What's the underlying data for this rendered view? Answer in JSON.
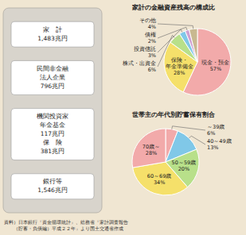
{
  "chart_data": [
    {
      "type": "pie",
      "title": "家計の金融資産残高の構成比",
      "categories": [
        "現金・預金",
        "保険・\n年金準備金",
        "株式・出資金",
        "投資信託",
        "債権",
        "その他"
      ],
      "values": [
        57,
        28,
        6,
        3,
        2,
        4
      ],
      "value_labels": [
        "57%",
        "28%",
        "6%",
        "3%",
        "2%",
        "4%"
      ],
      "data_labels": true,
      "colors": [
        "#f2aaaa",
        "#f5e06a",
        "#b8e08a",
        "#80c8e8",
        "#d0a0d0",
        "#c8b890"
      ],
      "annotations": [
        "家　計\n1,483兆円",
        "民間非金融\n法人企業\n796兆円",
        "機関投資家\n年金基金\n117兆円\n保　険\n381兆円",
        "銀行等\n1,546兆円"
      ]
    },
    {
      "type": "pie",
      "title": "世帯主の年代別貯蓄保有割合",
      "categories": [
        "～39歳",
        "40～49歳",
        "50～59歳",
        "60～69歳",
        "70歳～"
      ],
      "values": [
        6,
        13,
        20,
        34,
        28
      ],
      "value_labels": [
        "6%",
        "13%",
        "20%",
        "34%",
        "28%"
      ],
      "data_labels": true,
      "colors": [
        "#f2aaaa",
        "#80c8e8",
        "#b8e08a",
        "#f5e06a",
        "#f2aaaa"
      ],
      "annotations": [
        "資料）日本銀行『資金循環統計』、総務省『家計調査報告\n　　（貯蓄・負債編）平成２２年』より国土交通省作成"
      ]
    }
  ]
}
